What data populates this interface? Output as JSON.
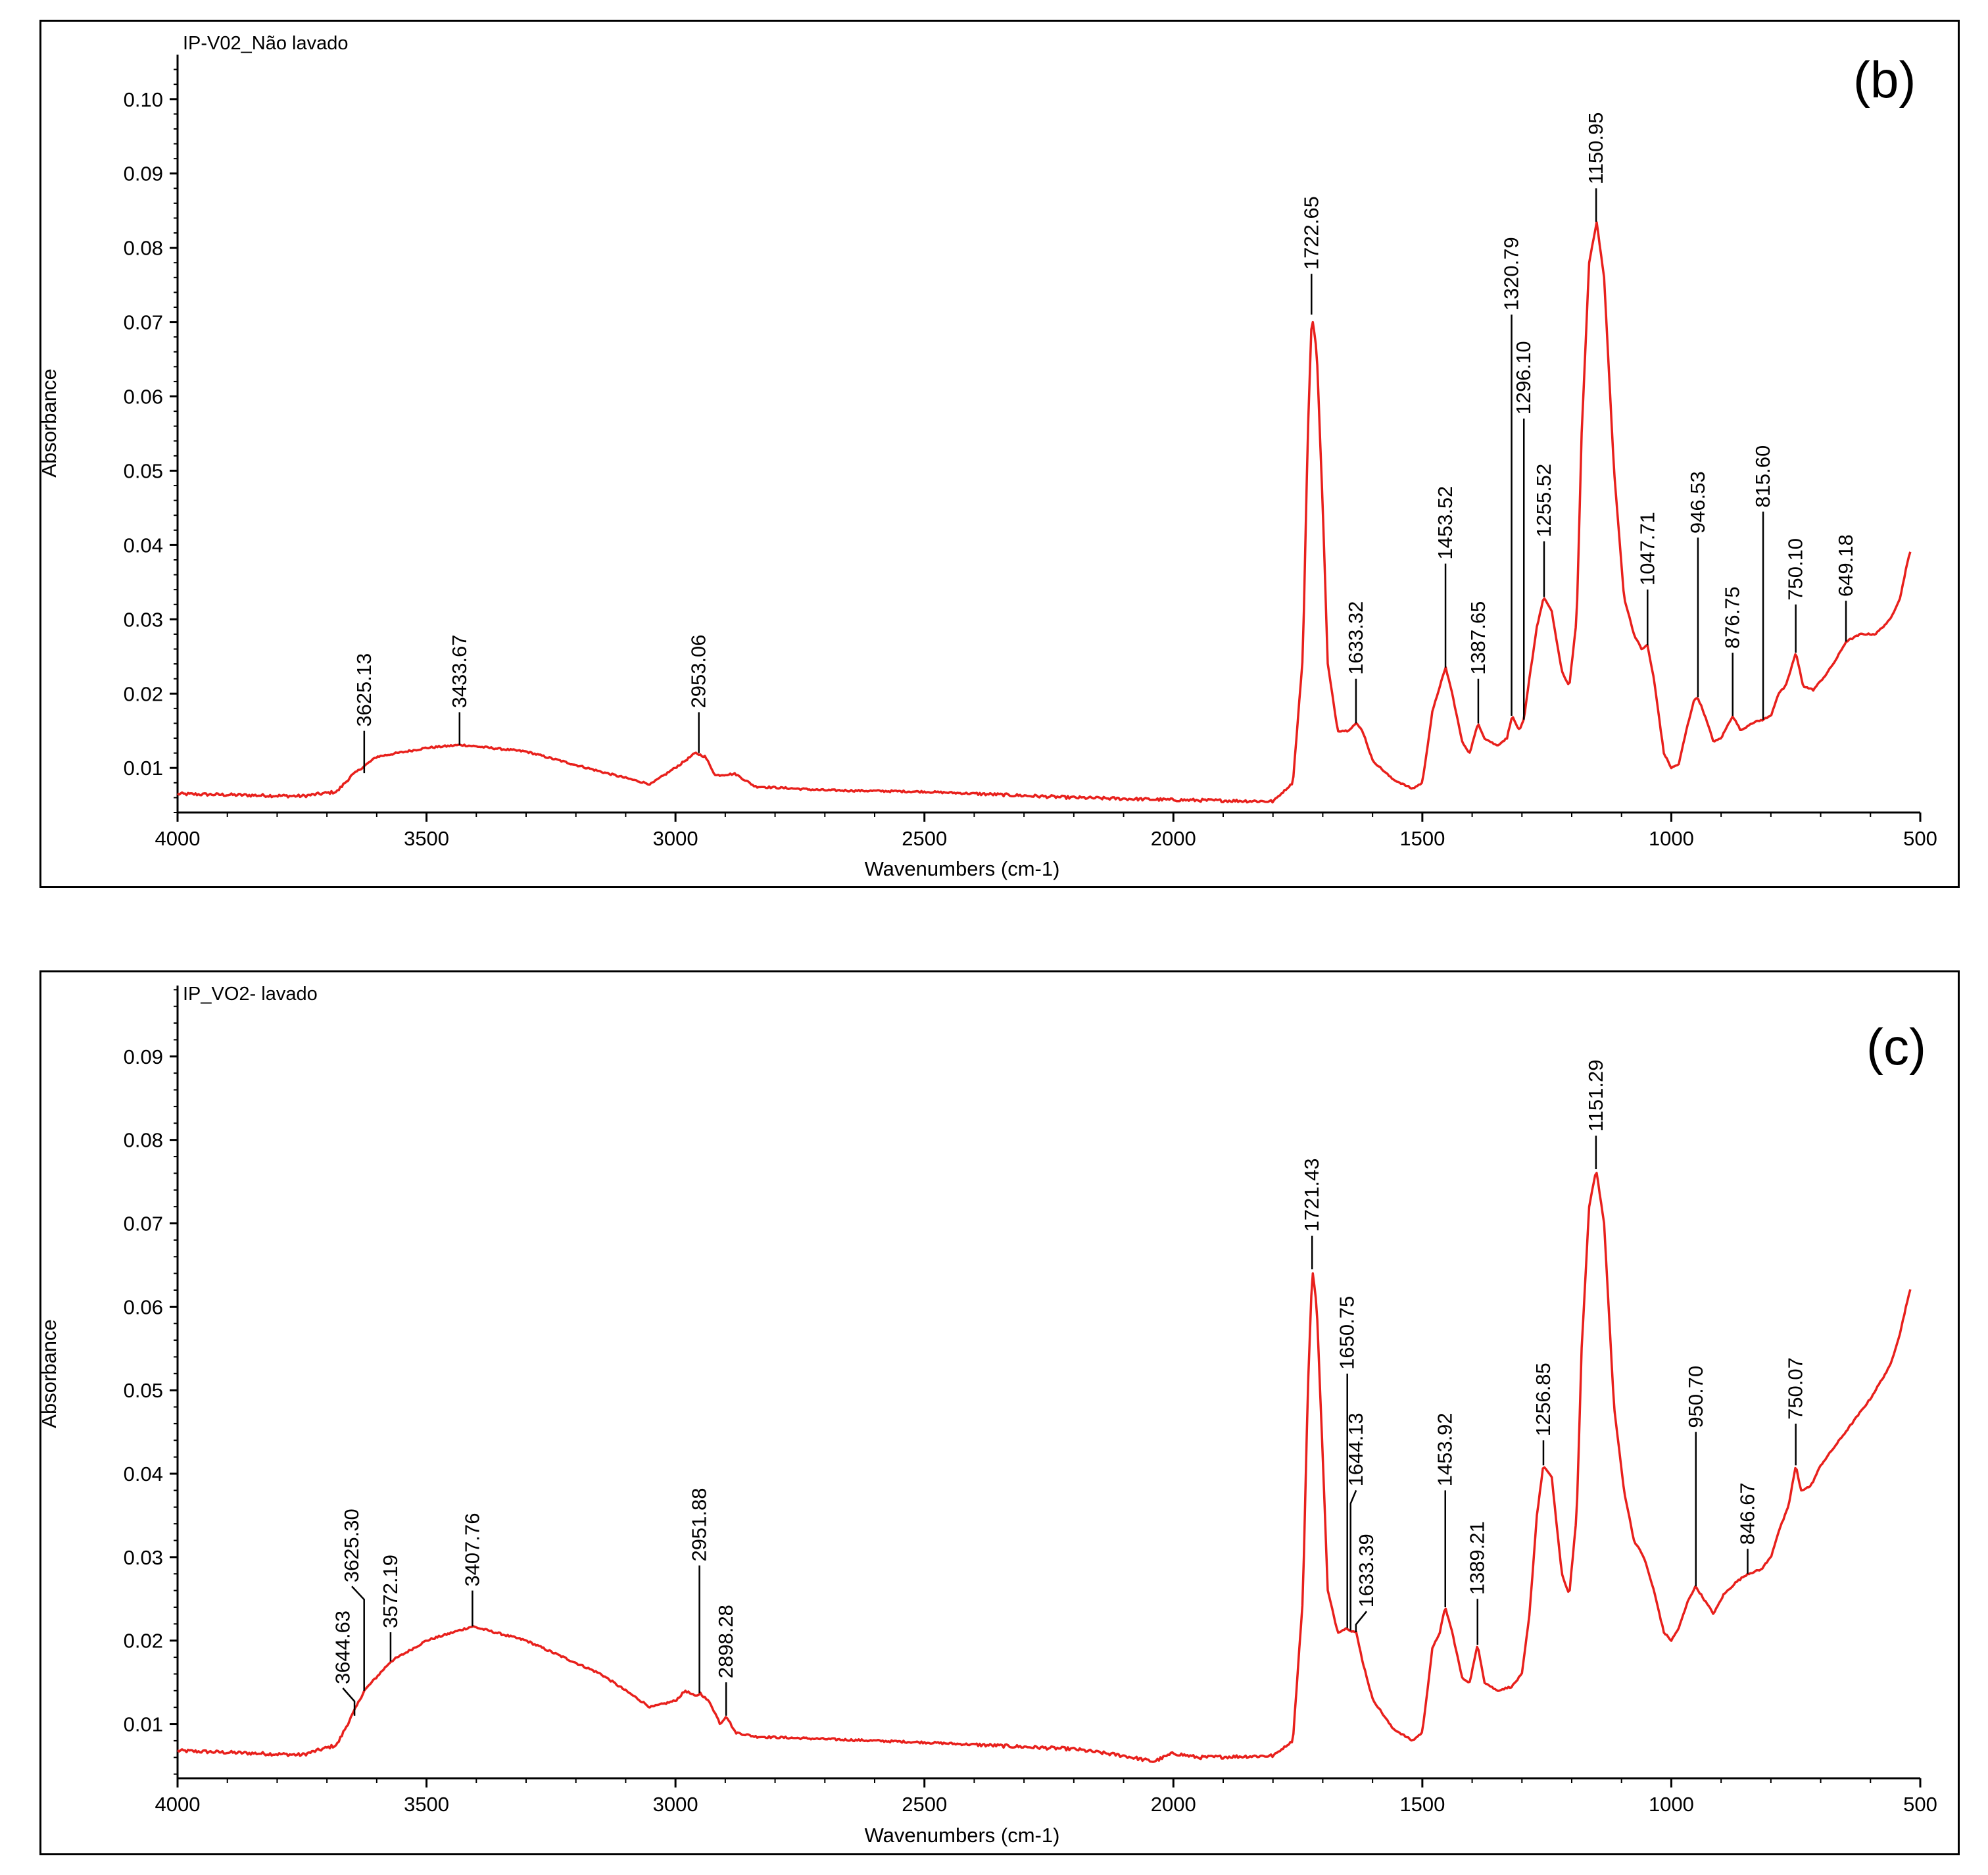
{
  "chart_data": [
    {
      "type": "line",
      "panel_label": "(b)",
      "series_name": "IP-V02_Não lavado",
      "xlabel": "Wavenumbers (cm-1)",
      "ylabel": "Absorbance",
      "xlim": [
        4000,
        500
      ],
      "ylim": [
        0.004,
        0.106
      ],
      "x_ticks": [
        4000,
        3500,
        3000,
        2500,
        2000,
        1500,
        1000,
        500
      ],
      "y_ticks": [
        0.01,
        0.02,
        0.03,
        0.04,
        0.05,
        0.06,
        0.07,
        0.08,
        0.09,
        0.1
      ],
      "line_color": "#e8201c",
      "baseline": [
        [
          4000,
          0.0065
        ],
        [
          3750,
          0.0062
        ],
        [
          3680,
          0.0068
        ],
        [
          3650,
          0.009
        ],
        [
          3600,
          0.0115
        ],
        [
          3500,
          0.0127
        ],
        [
          3430,
          0.0131
        ],
        [
          3300,
          0.0122
        ],
        [
          3150,
          0.0095
        ],
        [
          3050,
          0.0078
        ],
        [
          2990,
          0.0105
        ],
        [
          2960,
          0.012
        ],
        [
          2940,
          0.0115
        ],
        [
          2920,
          0.009
        ],
        [
          2880,
          0.0092
        ],
        [
          2840,
          0.0075
        ],
        [
          2700,
          0.007
        ],
        [
          2500,
          0.0068
        ],
        [
          2200,
          0.006
        ],
        [
          2000,
          0.0057
        ],
        [
          1800,
          0.0055
        ],
        [
          1760,
          0.008
        ],
        [
          1740,
          0.025
        ],
        [
          1730,
          0.055
        ],
        [
          1722,
          0.071
        ],
        [
          1712,
          0.066
        ],
        [
          1700,
          0.045
        ],
        [
          1690,
          0.024
        ],
        [
          1670,
          0.015
        ],
        [
          1650,
          0.015
        ],
        [
          1633,
          0.016
        ],
        [
          1620,
          0.015
        ],
        [
          1600,
          0.011
        ],
        [
          1560,
          0.0085
        ],
        [
          1520,
          0.0072
        ],
        [
          1500,
          0.008
        ],
        [
          1480,
          0.0175
        ],
        [
          1465,
          0.021
        ],
        [
          1453,
          0.0235
        ],
        [
          1440,
          0.02
        ],
        [
          1420,
          0.0135
        ],
        [
          1405,
          0.012
        ],
        [
          1388,
          0.016
        ],
        [
          1375,
          0.014
        ],
        [
          1350,
          0.013
        ],
        [
          1330,
          0.014
        ],
        [
          1320,
          0.017
        ],
        [
          1305,
          0.015
        ],
        [
          1296,
          0.0165
        ],
        [
          1285,
          0.022
        ],
        [
          1270,
          0.029
        ],
        [
          1256,
          0.033
        ],
        [
          1240,
          0.031
        ],
        [
          1220,
          0.023
        ],
        [
          1205,
          0.021
        ],
        [
          1190,
          0.03
        ],
        [
          1180,
          0.055
        ],
        [
          1165,
          0.078
        ],
        [
          1150,
          0.0835
        ],
        [
          1135,
          0.076
        ],
        [
          1115,
          0.05
        ],
        [
          1095,
          0.033
        ],
        [
          1075,
          0.028
        ],
        [
          1060,
          0.026
        ],
        [
          1048,
          0.0265
        ],
        [
          1035,
          0.022
        ],
        [
          1015,
          0.012
        ],
        [
          1000,
          0.01
        ],
        [
          985,
          0.0105
        ],
        [
          970,
          0.015
        ],
        [
          955,
          0.019
        ],
        [
          947,
          0.0195
        ],
        [
          935,
          0.0175
        ],
        [
          915,
          0.0135
        ],
        [
          900,
          0.014
        ],
        [
          877,
          0.017
        ],
        [
          860,
          0.015
        ],
        [
          840,
          0.016
        ],
        [
          816,
          0.0165
        ],
        [
          800,
          0.017
        ],
        [
          785,
          0.02
        ],
        [
          770,
          0.021
        ],
        [
          750,
          0.0255
        ],
        [
          735,
          0.021
        ],
        [
          715,
          0.0205
        ],
        [
          690,
          0.0225
        ],
        [
          670,
          0.0245
        ],
        [
          649,
          0.027
        ],
        [
          620,
          0.028
        ],
        [
          590,
          0.028
        ],
        [
          560,
          0.03
        ],
        [
          540,
          0.033
        ],
        [
          525,
          0.038
        ],
        [
          520,
          0.039
        ]
      ],
      "peaks": [
        {
          "x": 3625.13,
          "label": "3625.13",
          "y": 0.0093,
          "top": 0.015,
          "lx": 3625.13
        },
        {
          "x": 3433.67,
          "label": "3433.67",
          "y": 0.0131,
          "top": 0.0175,
          "lx": 3433.67
        },
        {
          "x": 2953.06,
          "label": "2953.06",
          "y": 0.012,
          "top": 0.0175,
          "lx": 2953.06
        },
        {
          "x": 1722.65,
          "label": "1722.65",
          "y": 0.071,
          "top": 0.0765,
          "lx": 1722.65
        },
        {
          "x": 1633.32,
          "label": "1633.32",
          "y": 0.016,
          "top": 0.022,
          "lx": 1633.32
        },
        {
          "x": 1453.52,
          "label": "1453.52",
          "y": 0.0235,
          "top": 0.0375,
          "lx": 1453.52
        },
        {
          "x": 1387.65,
          "label": "1387.65",
          "y": 0.016,
          "top": 0.022,
          "lx": 1387.65
        },
        {
          "x": 1320.79,
          "label": "1320.79",
          "y": 0.017,
          "top": 0.071,
          "lx": 1320.79
        },
        {
          "x": 1296.1,
          "label": "1296.10",
          "y": 0.0165,
          "top": 0.057,
          "lx": 1296.1
        },
        {
          "x": 1255.52,
          "label": "1255.52",
          "y": 0.033,
          "top": 0.0405,
          "lx": 1255.52
        },
        {
          "x": 1150.95,
          "label": "1150.95",
          "y": 0.0835,
          "top": 0.088,
          "lx": 1150.95
        },
        {
          "x": 1047.71,
          "label": "1047.71",
          "y": 0.0265,
          "top": 0.034,
          "lx": 1047.71
        },
        {
          "x": 946.53,
          "label": "946.53",
          "y": 0.0195,
          "top": 0.041,
          "lx": 946.53
        },
        {
          "x": 876.75,
          "label": "876.75",
          "y": 0.017,
          "top": 0.0255,
          "lx": 876.75
        },
        {
          "x": 815.6,
          "label": "815.60",
          "y": 0.0165,
          "top": 0.0445,
          "lx": 815.6
        },
        {
          "x": 750.1,
          "label": "750.10",
          "y": 0.0255,
          "top": 0.032,
          "lx": 750.1
        },
        {
          "x": 649.18,
          "label": "649.18",
          "y": 0.027,
          "top": 0.0325,
          "lx": 649.18
        }
      ]
    },
    {
      "type": "line",
      "panel_label": "(c)",
      "series_name": "IP_VO2- lavado",
      "xlabel": "Wavenumbers (cm-1)",
      "ylabel": "Absorbance",
      "xlim": [
        4000,
        500
      ],
      "ylim": [
        0.0035,
        0.0985
      ],
      "x_ticks": [
        4000,
        3500,
        3000,
        2500,
        2000,
        1500,
        1000,
        500
      ],
      "y_ticks": [
        0.01,
        0.02,
        0.03,
        0.04,
        0.05,
        0.06,
        0.07,
        0.08,
        0.09
      ],
      "line_color": "#e8201c",
      "baseline": [
        [
          4000,
          0.0068
        ],
        [
          3750,
          0.0063
        ],
        [
          3680,
          0.0075
        ],
        [
          3650,
          0.011
        ],
        [
          3625,
          0.014
        ],
        [
          3572,
          0.0175
        ],
        [
          3500,
          0.02
        ],
        [
          3408,
          0.0217
        ],
        [
          3300,
          0.02
        ],
        [
          3150,
          0.016
        ],
        [
          3050,
          0.012
        ],
        [
          3000,
          0.0128
        ],
        [
          2980,
          0.014
        ],
        [
          2960,
          0.0133
        ],
        [
          2950,
          0.0137
        ],
        [
          2930,
          0.0125
        ],
        [
          2910,
          0.01
        ],
        [
          2898,
          0.011
        ],
        [
          2880,
          0.009
        ],
        [
          2840,
          0.0085
        ],
        [
          2700,
          0.0082
        ],
        [
          2500,
          0.0078
        ],
        [
          2200,
          0.007
        ],
        [
          2100,
          0.0062
        ],
        [
          2040,
          0.0055
        ],
        [
          2000,
          0.0065
        ],
        [
          1950,
          0.006
        ],
        [
          1800,
          0.0062
        ],
        [
          1760,
          0.008
        ],
        [
          1740,
          0.025
        ],
        [
          1730,
          0.05
        ],
        [
          1721,
          0.0645
        ],
        [
          1712,
          0.06
        ],
        [
          1700,
          0.042
        ],
        [
          1690,
          0.026
        ],
        [
          1670,
          0.021
        ],
        [
          1651,
          0.0215
        ],
        [
          1644,
          0.0212
        ],
        [
          1633,
          0.021
        ],
        [
          1620,
          0.0175
        ],
        [
          1600,
          0.013
        ],
        [
          1560,
          0.0095
        ],
        [
          1520,
          0.008
        ],
        [
          1500,
          0.009
        ],
        [
          1480,
          0.019
        ],
        [
          1465,
          0.021
        ],
        [
          1454,
          0.024
        ],
        [
          1440,
          0.021
        ],
        [
          1420,
          0.0155
        ],
        [
          1405,
          0.015
        ],
        [
          1389,
          0.0195
        ],
        [
          1375,
          0.015
        ],
        [
          1350,
          0.014
        ],
        [
          1320,
          0.0145
        ],
        [
          1300,
          0.016
        ],
        [
          1285,
          0.023
        ],
        [
          1270,
          0.035
        ],
        [
          1257,
          0.041
        ],
        [
          1240,
          0.0395
        ],
        [
          1220,
          0.028
        ],
        [
          1205,
          0.0255
        ],
        [
          1190,
          0.035
        ],
        [
          1180,
          0.055
        ],
        [
          1165,
          0.072
        ],
        [
          1151,
          0.0765
        ],
        [
          1135,
          0.07
        ],
        [
          1115,
          0.048
        ],
        [
          1095,
          0.038
        ],
        [
          1075,
          0.032
        ],
        [
          1055,
          0.03
        ],
        [
          1035,
          0.026
        ],
        [
          1015,
          0.021
        ],
        [
          1000,
          0.02
        ],
        [
          985,
          0.0215
        ],
        [
          965,
          0.025
        ],
        [
          951,
          0.0265
        ],
        [
          935,
          0.025
        ],
        [
          915,
          0.0232
        ],
        [
          895,
          0.0255
        ],
        [
          870,
          0.027
        ],
        [
          847,
          0.028
        ],
        [
          820,
          0.0285
        ],
        [
          800,
          0.03
        ],
        [
          785,
          0.033
        ],
        [
          765,
          0.036
        ],
        [
          750,
          0.041
        ],
        [
          740,
          0.038
        ],
        [
          720,
          0.0385
        ],
        [
          700,
          0.041
        ],
        [
          650,
          0.045
        ],
        [
          600,
          0.049
        ],
        [
          560,
          0.053
        ],
        [
          540,
          0.057
        ],
        [
          525,
          0.061
        ],
        [
          520,
          0.062
        ]
      ],
      "peaks": [
        {
          "x": 3644.63,
          "label": "3644.63",
          "y": 0.011,
          "top": 0.0143,
          "lx": 3668
        },
        {
          "x": 3625.3,
          "label": "3625.30",
          "y": 0.014,
          "top": 0.0265,
          "lx": 3650
        },
        {
          "x": 3572.19,
          "label": "3572.19",
          "y": 0.0175,
          "top": 0.021,
          "lx": 3572.19
        },
        {
          "x": 3407.76,
          "label": "3407.76",
          "y": 0.0217,
          "top": 0.026,
          "lx": 3407.76
        },
        {
          "x": 2951.88,
          "label": "2951.88",
          "y": 0.0137,
          "top": 0.029,
          "lx": 2951.88
        },
        {
          "x": 2898.28,
          "label": "2898.28",
          "y": 0.011,
          "top": 0.015,
          "lx": 2898.28
        },
        {
          "x": 1721.43,
          "label": "1721.43",
          "y": 0.0645,
          "top": 0.0685,
          "lx": 1721.43
        },
        {
          "x": 1650.75,
          "label": "1650.75",
          "y": 0.0215,
          "top": 0.052,
          "lx": 1650.75
        },
        {
          "x": 1644.13,
          "label": "1644.13",
          "y": 0.0212,
          "top": 0.038,
          "lx": 1633
        },
        {
          "x": 1633.39,
          "label": "1633.39",
          "y": 0.021,
          "top": 0.0235,
          "lx": 1612
        },
        {
          "x": 1453.92,
          "label": "1453.92",
          "y": 0.024,
          "top": 0.038,
          "lx": 1453.92
        },
        {
          "x": 1389.21,
          "label": "1389.21",
          "y": 0.0195,
          "top": 0.025,
          "lx": 1389.21
        },
        {
          "x": 1256.85,
          "label": "1256.85",
          "y": 0.041,
          "top": 0.044,
          "lx": 1256.85
        },
        {
          "x": 1151.29,
          "label": "1151.29",
          "y": 0.0765,
          "top": 0.0805,
          "lx": 1151.29
        },
        {
          "x": 950.7,
          "label": "950.70",
          "y": 0.0265,
          "top": 0.045,
          "lx": 950.7
        },
        {
          "x": 846.67,
          "label": "846.67",
          "y": 0.028,
          "top": 0.031,
          "lx": 846.67
        },
        {
          "x": 750.07,
          "label": "750.07",
          "y": 0.041,
          "top": 0.046,
          "lx": 750.07
        }
      ]
    }
  ]
}
